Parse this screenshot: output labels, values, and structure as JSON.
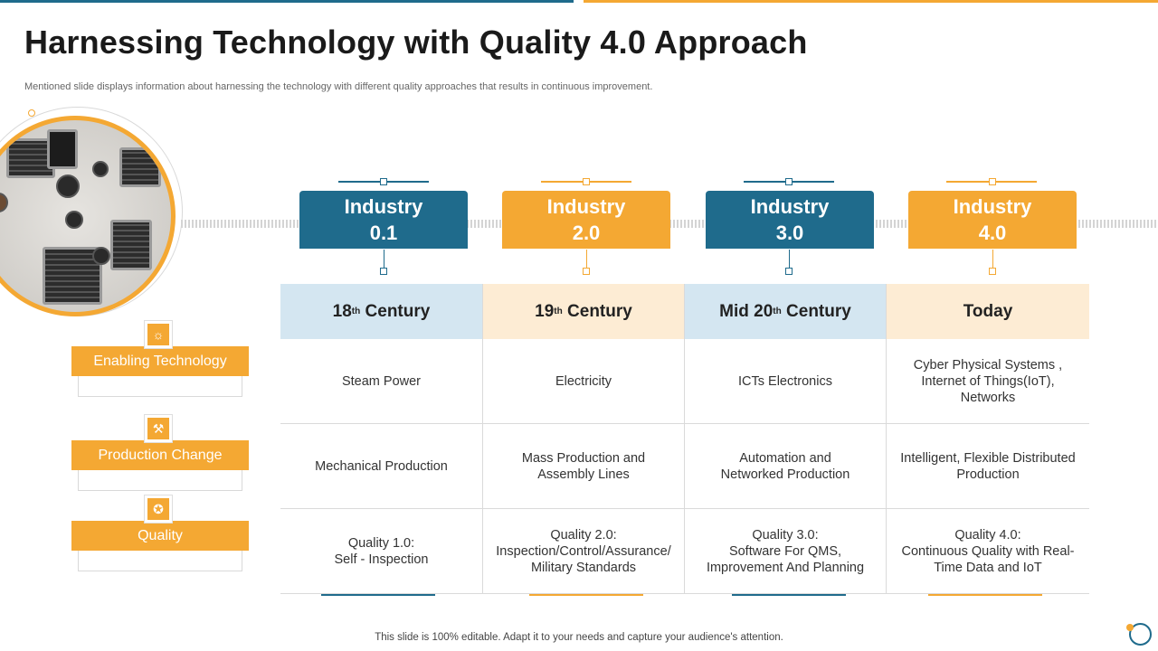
{
  "slide": {
    "title": "Harnessing Technology with Quality 4.0 Approach",
    "subtitle": "Mentioned slide displays information about harnessing the technology with different quality approaches that results in continuous improvement.",
    "footer": "This slide is 100% editable. Adapt it to your needs and capture your audience's attention."
  },
  "industries": [
    {
      "label": "Industry\n0.1",
      "color": "#1f6b8c"
    },
    {
      "label": "Industry\n2.0",
      "color": "#f4a833"
    },
    {
      "label": "Industry\n3.0",
      "color": "#1f6b8c"
    },
    {
      "label": "Industry\n4.0",
      "color": "#f4a833"
    }
  ],
  "table": {
    "headers": [
      {
        "pre": "18",
        "sup": "th",
        "post": " Century"
      },
      {
        "pre": "19",
        "sup": "th",
        "post": " Century"
      },
      {
        "pre": "Mid 20",
        "sup": "th",
        "post": " Century"
      },
      {
        "pre": "Today",
        "sup": "",
        "post": ""
      }
    ],
    "rows": [
      [
        "Steam Power",
        "Electricity",
        "ICTs Electronics",
        "Cyber Physical Systems ,\nInternet of Things(IoT),\nNetworks"
      ],
      [
        "Mechanical Production",
        "Mass Production and\nAssembly Lines",
        "Automation and\nNetworked Production",
        "Intelligent,  Flexible Distributed\nProduction"
      ],
      [
        "Quality 1.0:\nSelf - Inspection",
        "Quality 2.0:\nInspection/Control/Assurance/\nMilitary Standards",
        "Quality 3.0:\nSoftware For QMS,\nImprovement And Planning",
        "Quality 4.0:\nContinuous Quality with Real-\nTime Data and IoT"
      ]
    ]
  },
  "labels": [
    {
      "text": "Enabling Technology",
      "icon": "lightbulb-icon"
    },
    {
      "text": "Production Change",
      "icon": "production-icon"
    },
    {
      "text": "Quality",
      "icon": "quality-badge-icon"
    }
  ],
  "colors": {
    "blue": "#1f6b8c",
    "orange": "#f4a833",
    "light_blue": "#d4e6f1",
    "light_orange": "#fdecd4"
  }
}
